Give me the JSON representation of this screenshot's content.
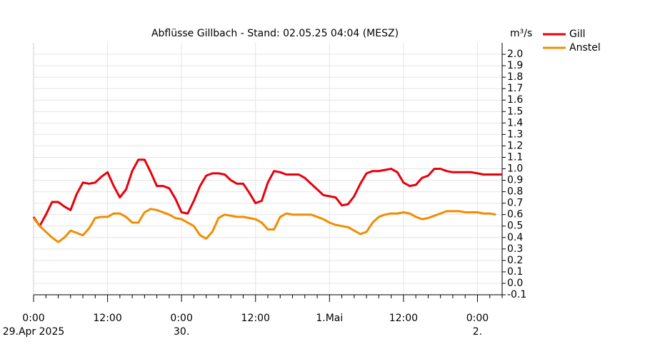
{
  "chart_data": {
    "type": "line",
    "title": "Abflüsse Gillbach - Stand: 02.05.25 04:04 (MESZ)",
    "y_unit": "m³/s",
    "x": [
      0,
      1,
      2,
      3,
      4,
      5,
      6,
      7,
      8,
      9,
      10,
      11,
      12,
      13,
      14,
      15,
      16,
      17,
      18,
      19,
      20,
      21,
      22,
      23,
      24,
      25,
      26,
      27,
      28,
      29,
      30,
      31,
      32,
      33,
      34,
      35,
      36,
      37,
      38,
      39,
      40,
      41,
      42,
      43,
      44,
      45,
      46,
      47,
      48,
      49,
      50,
      51,
      52,
      53,
      54,
      55,
      56,
      57,
      58,
      59,
      60,
      61,
      62,
      63,
      64,
      65,
      66,
      67,
      68,
      69,
      70,
      71,
      72,
      73,
      74,
      75,
      76
    ],
    "series": [
      {
        "name": "Gill",
        "color": "#e8000b",
        "values": [
          0.58,
          0.5,
          0.6,
          0.71,
          0.71,
          0.67,
          0.64,
          0.78,
          0.88,
          0.87,
          0.88,
          0.93,
          0.97,
          0.85,
          0.75,
          0.82,
          0.98,
          1.08,
          1.08,
          0.97,
          0.85,
          0.85,
          0.83,
          0.74,
          0.62,
          0.61,
          0.72,
          0.85,
          0.94,
          0.96,
          0.96,
          0.95,
          0.9,
          0.87,
          0.87,
          0.79,
          0.7,
          0.72,
          0.88,
          0.98,
          0.97,
          0.95,
          0.95,
          0.95,
          0.92,
          0.87,
          0.82,
          0.77,
          0.76,
          0.75,
          0.68,
          0.69,
          0.76,
          0.87,
          0.96,
          0.98,
          0.98,
          0.99,
          1.0,
          0.97,
          0.88,
          0.85,
          0.86,
          0.92,
          0.94,
          1.0,
          1.0,
          0.98,
          0.97,
          0.97,
          0.97,
          0.97,
          0.96,
          0.95,
          0.95,
          0.95,
          0.95
        ]
      },
      {
        "name": "Anstel",
        "color": "#f28c00",
        "values": [
          0.57,
          0.5,
          0.45,
          0.4,
          0.36,
          0.4,
          0.46,
          0.44,
          0.42,
          0.48,
          0.57,
          0.58,
          0.58,
          0.61,
          0.61,
          0.58,
          0.53,
          0.53,
          0.62,
          0.65,
          0.64,
          0.62,
          0.6,
          0.57,
          0.56,
          0.53,
          0.5,
          0.42,
          0.39,
          0.45,
          0.57,
          0.6,
          0.59,
          0.58,
          0.58,
          0.57,
          0.56,
          0.53,
          0.47,
          0.47,
          0.58,
          0.61,
          0.6,
          0.6,
          0.6,
          0.6,
          0.58,
          0.56,
          0.53,
          0.51,
          0.5,
          0.49,
          0.46,
          0.43,
          0.45,
          0.53,
          0.58,
          0.6,
          0.61,
          0.61,
          0.62,
          0.61,
          0.58,
          0.56,
          0.57,
          0.59,
          0.61,
          0.63,
          0.63,
          0.63,
          0.62,
          0.62,
          0.62,
          0.61,
          0.61,
          0.6,
          null
        ]
      }
    ],
    "xlim": [
      0,
      76
    ],
    "xticks": [
      {
        "value": 0,
        "label": "0:00"
      },
      {
        "value": 12,
        "label": "12:00"
      },
      {
        "value": 24,
        "label": "0:00"
      },
      {
        "value": 36,
        "label": "12:00"
      },
      {
        "value": 48,
        "label": "1.Mai"
      },
      {
        "value": 60,
        "label": "12:00"
      },
      {
        "value": 72,
        "label": "0:00"
      }
    ],
    "xdate_labels": [
      {
        "value": 0,
        "label": "29.Apr 2025"
      },
      {
        "value": 24,
        "label": "30."
      },
      {
        "value": 72,
        "label": "2."
      }
    ],
    "xminor_ticks": [
      2,
      4,
      6,
      8,
      10,
      14,
      16,
      18,
      20,
      22,
      26,
      28,
      30,
      32,
      34,
      38,
      40,
      42,
      44,
      46,
      50,
      52,
      54,
      56,
      58,
      62,
      64,
      66,
      68,
      70,
      74,
      76
    ],
    "ylim": [
      -0.1,
      2.1
    ],
    "yticks": [
      -0.1,
      {
        "value": 0,
        "label": "0.0"
      },
      0.1,
      0.2,
      0.3,
      0.4,
      0.5,
      0.6,
      0.7,
      0.8,
      0.9,
      {
        "value": 1,
        "label": "1.0"
      },
      1.1,
      1.2,
      1.3,
      1.4,
      1.5,
      1.6,
      1.7,
      1.8,
      1.9,
      {
        "value": 2,
        "label": "2.0"
      }
    ],
    "grid": true
  }
}
